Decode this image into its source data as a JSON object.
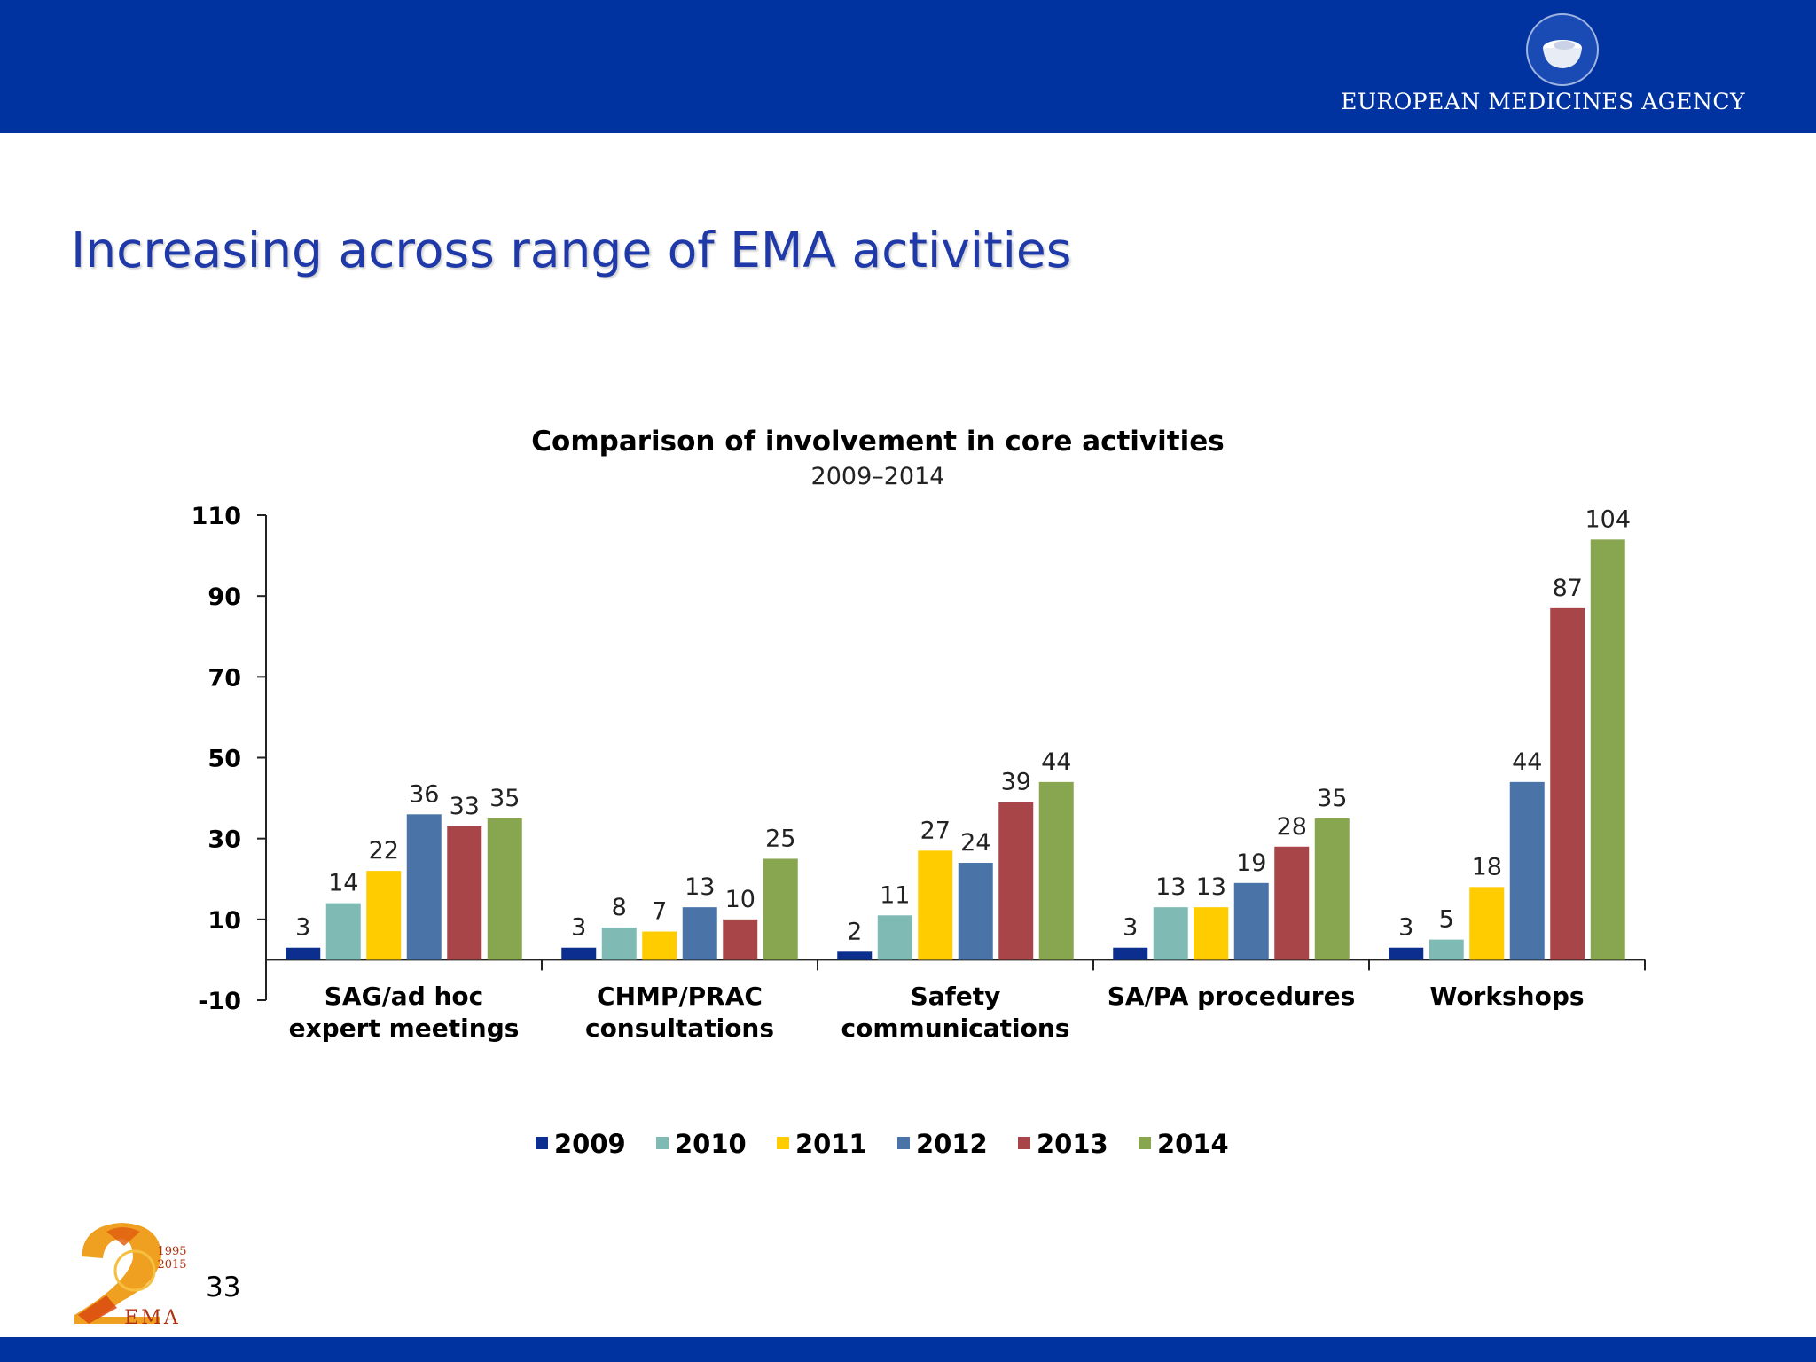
{
  "header": {
    "agency_name": "EUROPEAN MEDICINES AGENCY"
  },
  "slide": {
    "title": "Increasing across range of EMA activities",
    "page_number": "33"
  },
  "anniversary_logo": {
    "years_start": "1995",
    "years_end": "2015",
    "text": "EMA"
  },
  "colors": {
    "band": "#0033a0",
    "title": "#1f3aa8"
  },
  "chart_data": {
    "type": "bar",
    "title": "Comparison of involvement in core activities",
    "subtitle": "2009–2014",
    "xlabel": "",
    "ylabel": "",
    "ylim": [
      -10,
      110
    ],
    "yticks": [
      110,
      90,
      70,
      50,
      30,
      10,
      -10
    ],
    "grid": false,
    "legend_position": "bottom",
    "categories": [
      [
        "SAG/ad hoc",
        "expert meetings"
      ],
      [
        "CHMP/PRAC",
        "consultations"
      ],
      [
        "Safety",
        "communications"
      ],
      [
        "SA/PA procedures"
      ],
      [
        "Workshops"
      ]
    ],
    "series": [
      {
        "name": "2009",
        "color": "#0b2e8f",
        "values": [
          3,
          3,
          2,
          3,
          3
        ]
      },
      {
        "name": "2010",
        "color": "#7fbab4",
        "values": [
          14,
          8,
          11,
          13,
          5
        ]
      },
      {
        "name": "2011",
        "color": "#ffcc00",
        "values": [
          22,
          7,
          27,
          13,
          18
        ]
      },
      {
        "name": "2012",
        "color": "#4a74a8",
        "values": [
          36,
          13,
          24,
          19,
          44
        ]
      },
      {
        "name": "2013",
        "color": "#a84548",
        "values": [
          33,
          10,
          39,
          28,
          87
        ]
      },
      {
        "name": "2014",
        "color": "#88a550",
        "values": [
          35,
          25,
          44,
          35,
          104
        ]
      }
    ]
  }
}
